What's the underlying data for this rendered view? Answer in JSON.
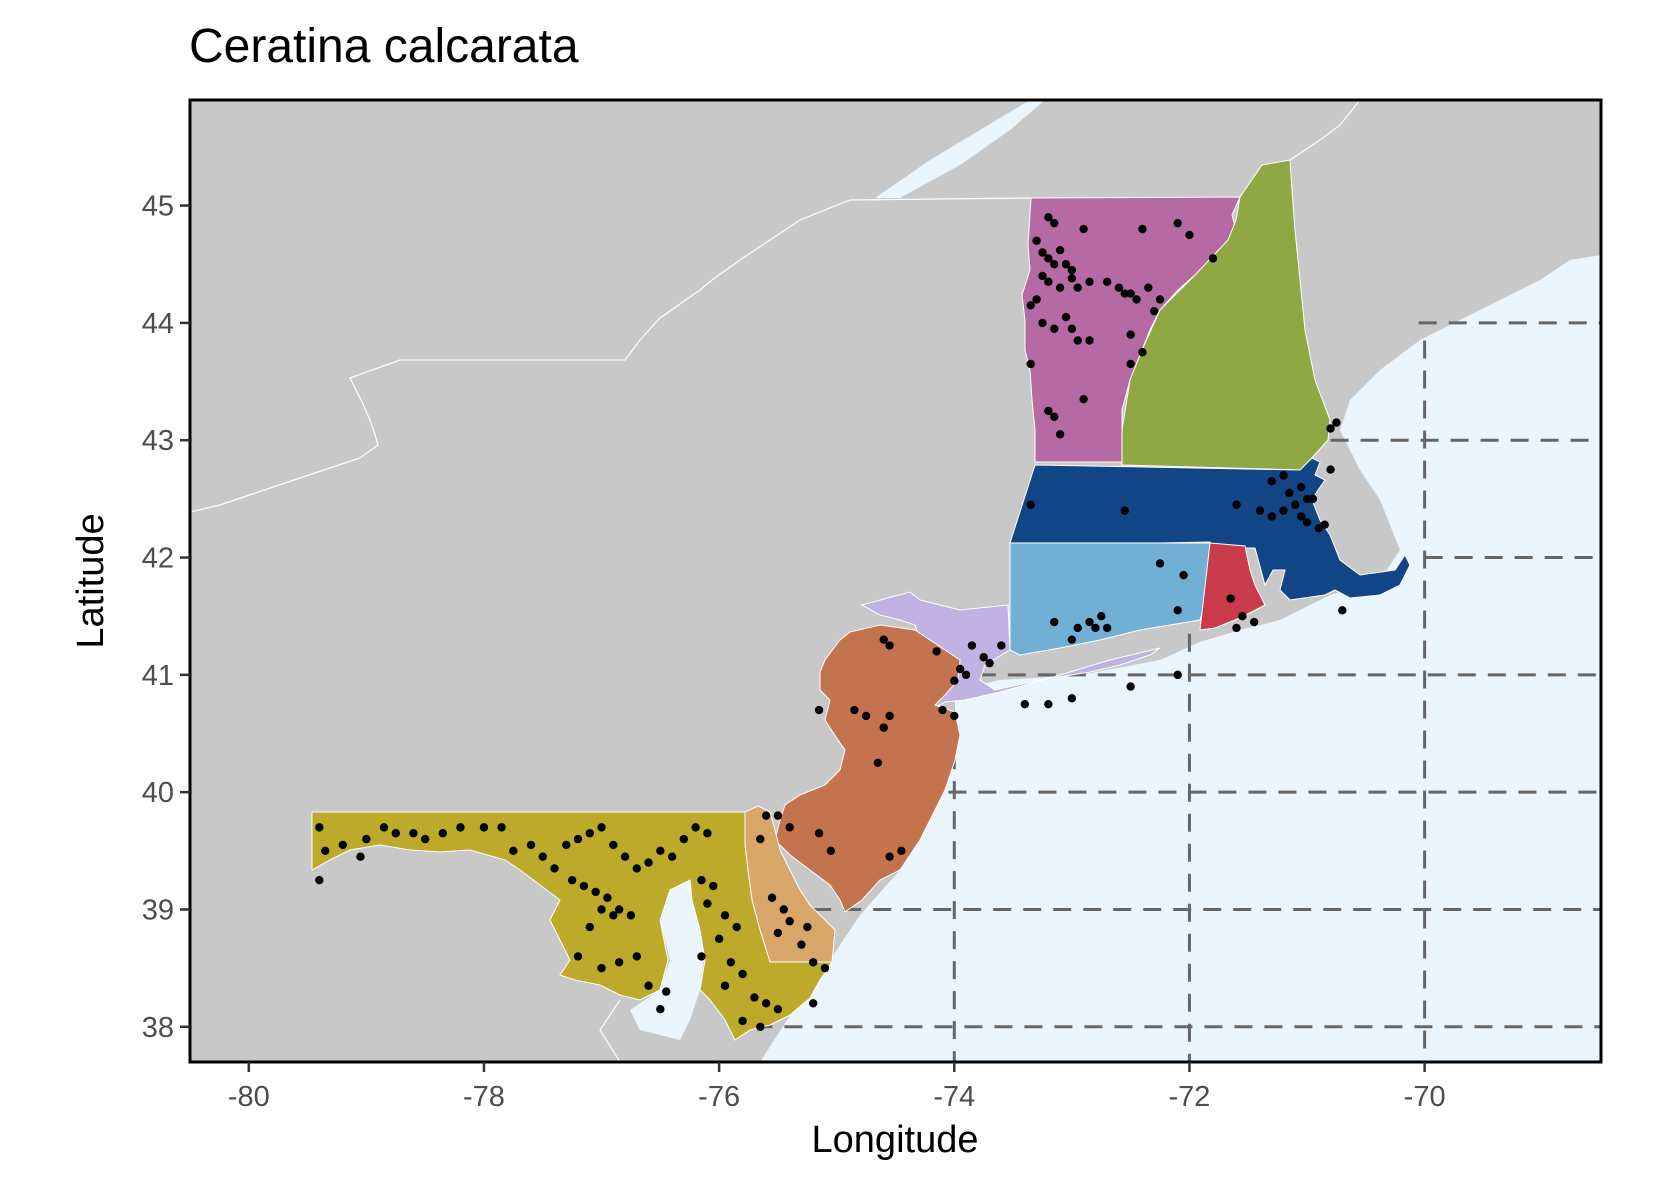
{
  "title": "Ceratina calcarata",
  "x_axis": {
    "label": "Longitude",
    "ticks": [
      -80,
      -78,
      -76,
      -74,
      -72,
      -70
    ],
    "tick_labels": [
      "-80",
      "-78",
      "-76",
      "-74",
      "-72",
      "-70"
    ]
  },
  "y_axis": {
    "label": "Latitude",
    "ticks": [
      38,
      39,
      40,
      41,
      42,
      43,
      44,
      45
    ],
    "tick_labels": [
      "38",
      "39",
      "40",
      "41",
      "42",
      "43",
      "44",
      "45"
    ]
  },
  "colors": {
    "land": "#c8c8c8",
    "water": "#eaf5fd",
    "vermont": "#b56aa3",
    "new_hampshire": "#8fa844",
    "massachusetts": "#114585",
    "connecticut": "#71afd5",
    "rhode_island": "#c93a4b",
    "new_york_southeast": "#c0b2e3",
    "new_jersey": "#c3744f",
    "maryland": "#bda92a",
    "delaware": "#d9a66a",
    "points": "#000000",
    "grid": "#666666"
  },
  "chart_data": {
    "type": "scatter",
    "title": "Ceratina calcarata",
    "xlabel": "Longitude",
    "ylabel": "Latitude",
    "xlim": [
      -80.5,
      -68.5
    ],
    "ylim": [
      37.7,
      45.9
    ],
    "grid_extent": "dashed lines over ocean only",
    "states_shown": [
      "Vermont",
      "New Hampshire",
      "Massachusetts",
      "Connecticut",
      "Rhode Island",
      "New York (southeast)",
      "New Jersey",
      "Maryland",
      "Delaware"
    ],
    "points": [
      [
        -73.2,
        44.9
      ],
      [
        -73.15,
        44.85
      ],
      [
        -72.9,
        44.8
      ],
      [
        -72.4,
        44.8
      ],
      [
        -72.1,
        44.85
      ],
      [
        -72.0,
        44.75
      ],
      [
        -71.8,
        44.55
      ],
      [
        -73.3,
        44.7
      ],
      [
        -73.25,
        44.6
      ],
      [
        -73.2,
        44.55
      ],
      [
        -73.15,
        44.5
      ],
      [
        -73.1,
        44.62
      ],
      [
        -73.05,
        44.5
      ],
      [
        -73.0,
        44.45
      ],
      [
        -73.25,
        44.4
      ],
      [
        -73.2,
        44.35
      ],
      [
        -73.1,
        44.3
      ],
      [
        -73.0,
        44.38
      ],
      [
        -72.95,
        44.3
      ],
      [
        -72.85,
        44.35
      ],
      [
        -72.5,
        44.25
      ],
      [
        -72.45,
        44.2
      ],
      [
        -72.35,
        44.3
      ],
      [
        -72.25,
        44.2
      ],
      [
        -72.3,
        44.1
      ],
      [
        -72.55,
        44.25
      ],
      [
        -72.6,
        44.3
      ],
      [
        -72.7,
        44.35
      ],
      [
        -73.3,
        44.2
      ],
      [
        -73.35,
        44.15
      ],
      [
        -73.25,
        44.0
      ],
      [
        -73.15,
        43.95
      ],
      [
        -73.05,
        44.05
      ],
      [
        -73.0,
        43.95
      ],
      [
        -72.95,
        43.85
      ],
      [
        -72.85,
        43.85
      ],
      [
        -72.5,
        43.9
      ],
      [
        -72.4,
        43.75
      ],
      [
        -72.5,
        43.65
      ],
      [
        -73.35,
        43.65
      ],
      [
        -73.2,
        43.25
      ],
      [
        -73.15,
        43.2
      ],
      [
        -73.1,
        43.05
      ],
      [
        -72.9,
        43.35
      ],
      [
        -70.8,
        43.1
      ],
      [
        -70.75,
        43.15
      ],
      [
        -73.35,
        42.45
      ],
      [
        -72.55,
        42.4
      ],
      [
        -71.6,
        42.45
      ],
      [
        -71.4,
        42.4
      ],
      [
        -71.3,
        42.35
      ],
      [
        -71.2,
        42.4
      ],
      [
        -71.1,
        42.45
      ],
      [
        -71.05,
        42.35
      ],
      [
        -71.0,
        42.5
      ],
      [
        -71.0,
        42.3
      ],
      [
        -70.9,
        42.25
      ],
      [
        -70.85,
        42.28
      ],
      [
        -70.95,
        42.5
      ],
      [
        -70.8,
        42.75
      ],
      [
        -71.15,
        42.55
      ],
      [
        -71.3,
        42.65
      ],
      [
        -71.2,
        42.7
      ],
      [
        -71.05,
        42.6
      ],
      [
        -70.7,
        41.55
      ],
      [
        -71.65,
        41.65
      ],
      [
        -71.55,
        41.5
      ],
      [
        -71.6,
        41.4
      ],
      [
        -71.45,
        41.45
      ],
      [
        -72.25,
        41.95
      ],
      [
        -72.05,
        41.85
      ],
      [
        -72.1,
        41.55
      ],
      [
        -72.85,
        41.45
      ],
      [
        -72.8,
        41.4
      ],
      [
        -72.75,
        41.5
      ],
      [
        -72.7,
        41.4
      ],
      [
        -72.95,
        41.4
      ],
      [
        -73.0,
        41.3
      ],
      [
        -73.15,
        41.45
      ],
      [
        -73.6,
        41.25
      ],
      [
        -73.85,
        41.25
      ],
      [
        -73.75,
        41.15
      ],
      [
        -73.95,
        41.05
      ],
      [
        -74.0,
        40.95
      ],
      [
        -73.9,
        41.0
      ],
      [
        -74.15,
        41.2
      ],
      [
        -73.7,
        41.1
      ],
      [
        -73.0,
        40.8
      ],
      [
        -73.2,
        40.75
      ],
      [
        -73.4,
        40.75
      ],
      [
        -72.5,
        40.9
      ],
      [
        -72.1,
        41.0
      ],
      [
        -74.1,
        40.7
      ],
      [
        -74.0,
        40.65
      ],
      [
        -74.55,
        41.25
      ],
      [
        -74.6,
        41.3
      ],
      [
        -74.85,
        40.7
      ],
      [
        -74.75,
        40.65
      ],
      [
        -74.55,
        40.65
      ],
      [
        -74.6,
        40.55
      ],
      [
        -75.15,
        40.7
      ],
      [
        -74.65,
        40.25
      ],
      [
        -75.15,
        39.65
      ],
      [
        -75.05,
        39.5
      ],
      [
        -74.45,
        39.5
      ],
      [
        -74.55,
        39.45
      ],
      [
        -79.4,
        39.7
      ],
      [
        -79.35,
        39.5
      ],
      [
        -79.2,
        39.55
      ],
      [
        -79.0,
        39.6
      ],
      [
        -78.85,
        39.7
      ],
      [
        -78.75,
        39.65
      ],
      [
        -78.6,
        39.65
      ],
      [
        -78.5,
        39.6
      ],
      [
        -78.35,
        39.65
      ],
      [
        -78.2,
        39.7
      ],
      [
        -78.0,
        39.7
      ],
      [
        -77.85,
        39.7
      ],
      [
        -79.05,
        39.45
      ],
      [
        -79.4,
        39.25
      ],
      [
        -77.75,
        39.5
      ],
      [
        -77.6,
        39.55
      ],
      [
        -77.5,
        39.45
      ],
      [
        -77.4,
        39.35
      ],
      [
        -77.3,
        39.55
      ],
      [
        -77.2,
        39.6
      ],
      [
        -77.1,
        39.65
      ],
      [
        -77.0,
        39.7
      ],
      [
        -76.9,
        39.55
      ],
      [
        -76.8,
        39.45
      ],
      [
        -76.7,
        39.35
      ],
      [
        -76.6,
        39.4
      ],
      [
        -76.5,
        39.5
      ],
      [
        -76.4,
        39.45
      ],
      [
        -76.3,
        39.6
      ],
      [
        -76.2,
        39.7
      ],
      [
        -76.1,
        39.65
      ],
      [
        -77.25,
        39.25
      ],
      [
        -77.15,
        39.2
      ],
      [
        -77.05,
        39.15
      ],
      [
        -76.95,
        39.1
      ],
      [
        -76.85,
        39.0
      ],
      [
        -76.75,
        38.95
      ],
      [
        -76.9,
        38.95
      ],
      [
        -77.0,
        39.0
      ],
      [
        -77.1,
        38.85
      ],
      [
        -77.2,
        38.6
      ],
      [
        -77.0,
        38.5
      ],
      [
        -76.85,
        38.55
      ],
      [
        -76.7,
        38.6
      ],
      [
        -76.6,
        38.35
      ],
      [
        -76.45,
        38.3
      ],
      [
        -76.5,
        38.15
      ],
      [
        -76.15,
        39.25
      ],
      [
        -76.05,
        39.2
      ],
      [
        -76.1,
        39.05
      ],
      [
        -75.95,
        38.95
      ],
      [
        -75.85,
        38.85
      ],
      [
        -76.0,
        38.75
      ],
      [
        -76.15,
        38.6
      ],
      [
        -75.9,
        38.55
      ],
      [
        -75.8,
        38.45
      ],
      [
        -75.95,
        38.35
      ],
      [
        -75.7,
        38.25
      ],
      [
        -75.6,
        38.2
      ],
      [
        -75.5,
        38.15
      ],
      [
        -75.8,
        38.05
      ],
      [
        -75.65,
        38.0
      ],
      [
        -75.2,
        38.2
      ],
      [
        -75.6,
        39.8
      ],
      [
        -75.5,
        39.8
      ],
      [
        -75.4,
        39.7
      ],
      [
        -75.65,
        39.6
      ],
      [
        -75.55,
        39.1
      ],
      [
        -75.45,
        39.0
      ],
      [
        -75.4,
        38.9
      ],
      [
        -75.5,
        38.8
      ],
      [
        -75.3,
        38.7
      ],
      [
        -75.2,
        38.55
      ],
      [
        -75.1,
        38.5
      ],
      [
        -75.25,
        38.85
      ]
    ]
  }
}
